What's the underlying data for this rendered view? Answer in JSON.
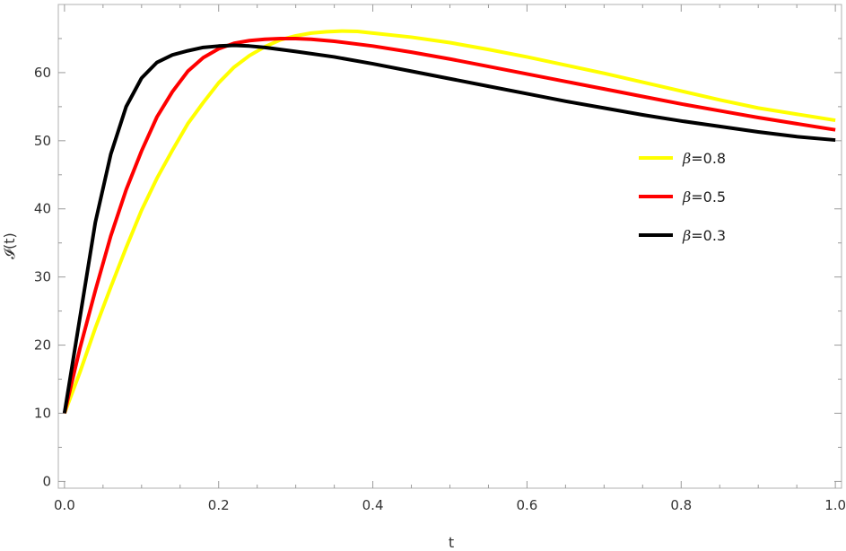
{
  "chart_data": {
    "type": "line",
    "xlabel": "t",
    "ylabel": "𝓘(t)",
    "xlim": [
      -0.008,
      1.008
    ],
    "ylim": [
      -1,
      70
    ],
    "xticks": [
      0.0,
      0.2,
      0.4,
      0.6,
      0.8,
      1.0
    ],
    "xtick_labels": [
      "0.0",
      "0.2",
      "0.4",
      "0.6",
      "0.8",
      "1.0"
    ],
    "yticks": [
      0,
      10,
      20,
      30,
      40,
      50,
      60
    ],
    "ytick_labels": [
      "0",
      "10",
      "20",
      "30",
      "40",
      "50",
      "60"
    ],
    "x_minor_step": 0.05,
    "y_minor_step": 5,
    "grid": false,
    "legend_position": "right",
    "series": [
      {
        "name_symbol": "β",
        "name_value": "=0.8",
        "color": "#FFFF00",
        "x": [
          0.0,
          0.02,
          0.04,
          0.06,
          0.08,
          0.1,
          0.12,
          0.14,
          0.16,
          0.18,
          0.2,
          0.22,
          0.24,
          0.26,
          0.28,
          0.3,
          0.32,
          0.34,
          0.36,
          0.38,
          0.4,
          0.45,
          0.5,
          0.55,
          0.6,
          0.65,
          0.7,
          0.75,
          0.8,
          0.85,
          0.9,
          0.95,
          1.0
        ],
        "y": [
          10.0,
          16.0,
          22.5,
          28.5,
          34.3,
          39.8,
          44.5,
          48.6,
          52.5,
          55.6,
          58.5,
          60.8,
          62.5,
          63.8,
          64.8,
          65.4,
          65.8,
          66.0,
          66.1,
          66.05,
          65.8,
          65.2,
          64.4,
          63.4,
          62.3,
          61.1,
          59.9,
          58.6,
          57.3,
          56.0,
          54.8,
          53.9,
          53.0
        ]
      },
      {
        "name_symbol": "β",
        "name_value": "=0.5",
        "color": "#FF0000",
        "x": [
          0.0,
          0.02,
          0.04,
          0.06,
          0.08,
          0.1,
          0.12,
          0.14,
          0.16,
          0.18,
          0.2,
          0.22,
          0.24,
          0.26,
          0.28,
          0.3,
          0.32,
          0.35,
          0.4,
          0.45,
          0.5,
          0.55,
          0.6,
          0.65,
          0.7,
          0.75,
          0.8,
          0.85,
          0.9,
          0.95,
          1.0
        ],
        "y": [
          10.0,
          19.5,
          28.0,
          36.0,
          42.8,
          48.5,
          53.5,
          57.2,
          60.2,
          62.2,
          63.5,
          64.3,
          64.7,
          64.9,
          65.0,
          65.0,
          64.9,
          64.6,
          63.9,
          63.0,
          62.0,
          60.9,
          59.8,
          58.7,
          57.6,
          56.5,
          55.4,
          54.4,
          53.4,
          52.5,
          51.6
        ]
      },
      {
        "name_symbol": "β",
        "name_value": "=0.3",
        "color": "#000000",
        "x": [
          0.0,
          0.02,
          0.04,
          0.06,
          0.08,
          0.1,
          0.12,
          0.14,
          0.16,
          0.18,
          0.2,
          0.22,
          0.24,
          0.26,
          0.3,
          0.35,
          0.4,
          0.45,
          0.5,
          0.55,
          0.6,
          0.65,
          0.7,
          0.75,
          0.8,
          0.85,
          0.9,
          0.95,
          1.0
        ],
        "y": [
          10.0,
          24.0,
          38.0,
          48.0,
          55.0,
          59.2,
          61.5,
          62.6,
          63.2,
          63.7,
          63.9,
          64.0,
          63.9,
          63.7,
          63.1,
          62.3,
          61.3,
          60.2,
          59.1,
          58.0,
          56.9,
          55.8,
          54.8,
          53.8,
          52.9,
          52.1,
          51.3,
          50.6,
          50.1
        ]
      }
    ]
  }
}
